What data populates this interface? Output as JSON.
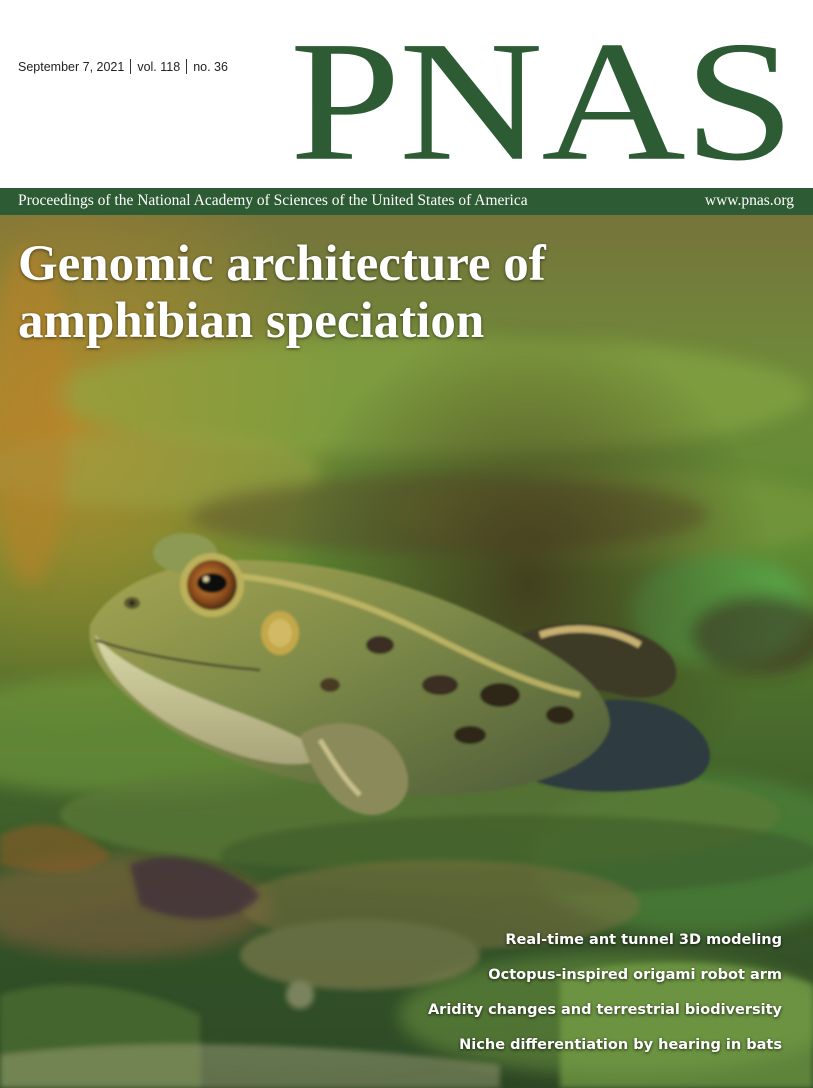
{
  "masthead": {
    "issue_date": "September 7, 2021",
    "volume": "vol. 118",
    "number": "no. 36",
    "logo": "PNAS",
    "tagline": "Proceedings of the National Academy of Sciences of the United States of America",
    "website": "www.pnas.org"
  },
  "cover": {
    "headline_line1": "Genomic architecture of",
    "headline_line2": "amphibian speciation",
    "photo_subject": "frog-on-lily-pads",
    "teasers": [
      "Real-time ant tunnel 3D modeling",
      "Octopus-inspired origami robot arm",
      "Aridity changes and terrestrial biodiversity",
      "Niche differentiation by hearing in bats"
    ]
  },
  "colors": {
    "brand_green": "#2d5b34",
    "text_light": "#ffffff"
  }
}
